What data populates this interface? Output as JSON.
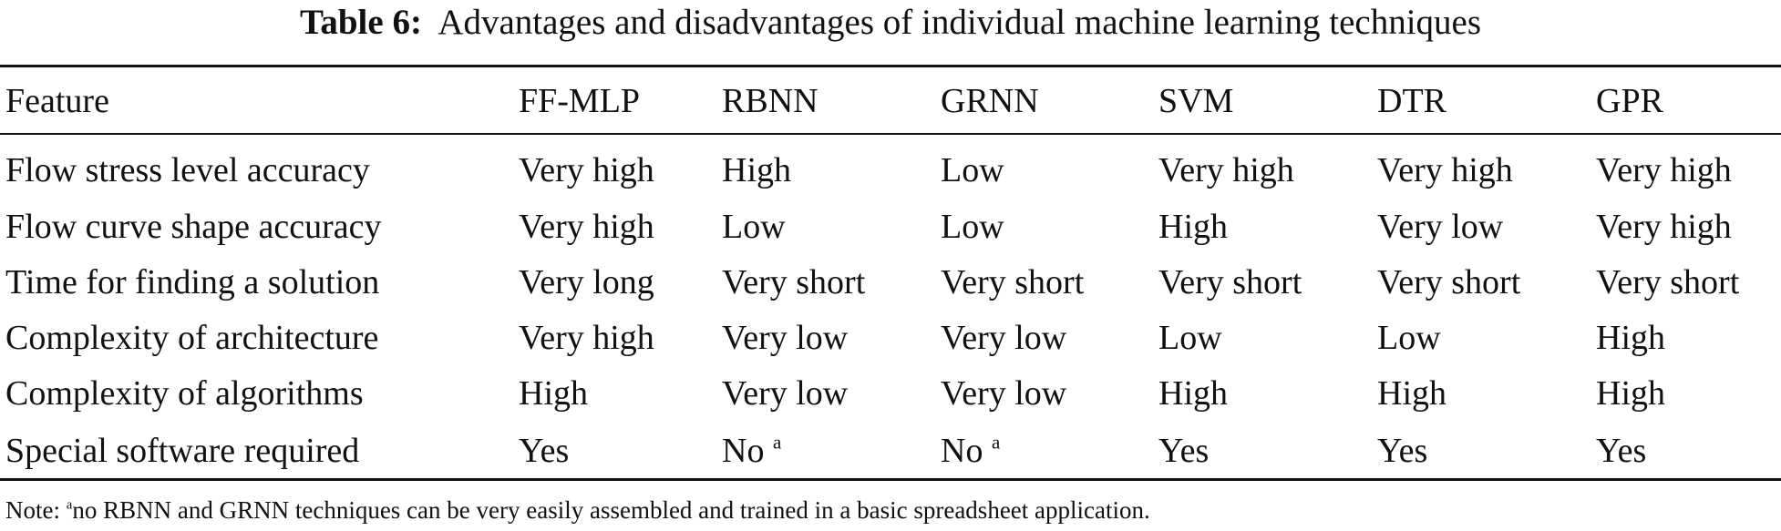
{
  "caption": {
    "label": "Table 6:",
    "text": "Advantages and disadvantages of individual machine learning techniques"
  },
  "table": {
    "header": [
      "Feature",
      "FF-MLP",
      "RBNN",
      "GRNN",
      "SVM",
      "DTR",
      "GPR"
    ],
    "rows": [
      [
        "Flow stress level accuracy",
        "Very high",
        "High",
        "Low",
        "Very high",
        "Very high",
        "Very high"
      ],
      [
        "Flow curve shape accuracy",
        "Very high",
        "Low",
        "Low",
        "High",
        "Very low",
        "Very high"
      ],
      [
        "Time for finding a solution",
        "Very long",
        "Very short",
        "Very short",
        "Very short",
        "Very short",
        "Very short"
      ],
      [
        "Complexity of architecture",
        "Very high",
        "Very low",
        "Very low",
        "Low",
        "Low",
        "High"
      ],
      [
        "Complexity of algorithms",
        "High",
        "Very low",
        "Very low",
        "High",
        "High",
        "High"
      ],
      [
        "Special software required",
        "Yes",
        {
          "text": "No",
          "sup": "a"
        },
        {
          "text": "No",
          "sup": "a"
        },
        "Yes",
        "Yes",
        "Yes"
      ]
    ]
  },
  "note": {
    "label": "Note:",
    "sup": "a",
    "text": "no RBNN and GRNN techniques can be very easily assembled and trained in a basic spreadsheet application."
  }
}
